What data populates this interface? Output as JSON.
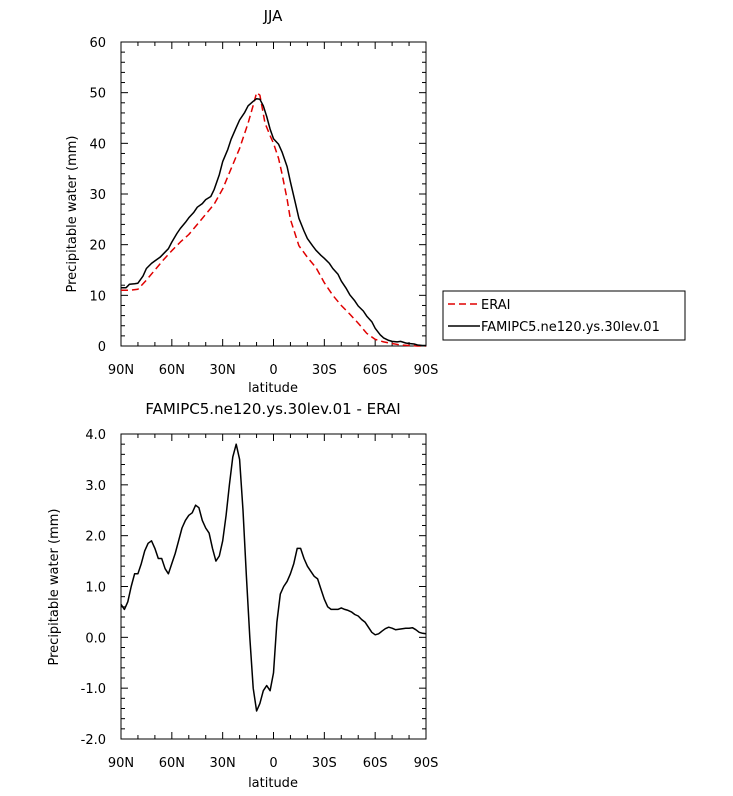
{
  "chart_data": [
    {
      "type": "line",
      "title": "JJA",
      "xlabel": "latitude",
      "ylabel": "Precipitable water (mm)",
      "xlim": [
        90,
        -90
      ],
      "ylim": [
        0,
        60
      ],
      "xticks": [
        90,
        60,
        30,
        0,
        -30,
        -60,
        -90
      ],
      "xtick_labels": [
        "90N",
        "60N",
        "30N",
        "0",
        "30S",
        "60S",
        "90S"
      ],
      "yticks": [
        0,
        10,
        20,
        30,
        40,
        50,
        60
      ],
      "ytick_labels": [
        "0",
        "10",
        "20",
        "30",
        "40",
        "50",
        "60"
      ],
      "legend": {
        "placement": "right-outside"
      },
      "series": [
        {
          "name": "ERAI",
          "color": "#e00000",
          "dash": "dashed",
          "x": [
            90,
            85,
            80,
            75,
            70,
            65,
            60,
            55,
            50,
            45,
            40,
            35,
            30,
            25,
            20,
            15,
            12,
            10,
            8,
            5,
            2,
            0,
            -3,
            -5,
            -8,
            -10,
            -15,
            -20,
            -25,
            -30,
            -35,
            -40,
            -45,
            -50,
            -55,
            -60,
            -65,
            -70,
            -75,
            -80,
            -85,
            -90
          ],
          "y": [
            11,
            11,
            11.2,
            13,
            15,
            17,
            18.8,
            20.5,
            22,
            24,
            26,
            28,
            31,
            35,
            39,
            44,
            47.5,
            50,
            49.5,
            44,
            41.5,
            40,
            37,
            34,
            29,
            25,
            19.8,
            17.5,
            15.5,
            12.5,
            10,
            8,
            6.3,
            4.5,
            2.5,
            1.3,
            0.8,
            0.5,
            0.2,
            0.1,
            0,
            0
          ]
        },
        {
          "name": "FAMIPC5.ne120.ys.30lev.01",
          "color": "#000000",
          "dash": "solid",
          "x": [
            90,
            87,
            85,
            82,
            80,
            77,
            75,
            72,
            70,
            67,
            65,
            62,
            60,
            57,
            55,
            52,
            50,
            47,
            45,
            42,
            40,
            37,
            35,
            32,
            30,
            27,
            25,
            22,
            20,
            17,
            15,
            12,
            10,
            8,
            6,
            4,
            2,
            0,
            -3,
            -5,
            -8,
            -10,
            -13,
            -15,
            -18,
            -20,
            -23,
            -25,
            -28,
            -30,
            -33,
            -35,
            -38,
            -40,
            -43,
            -45,
            -48,
            -50,
            -53,
            -55,
            -58,
            -60,
            -63,
            -65,
            -68,
            -70,
            -73,
            -75,
            -78,
            -80,
            -83,
            -85,
            -88,
            -90
          ],
          "y": [
            11.5,
            11.5,
            12.2,
            12.3,
            12.4,
            13.8,
            15.3,
            16.3,
            16.8,
            17.5,
            18.2,
            19.2,
            20.5,
            22.2,
            23.2,
            24.4,
            25.3,
            26.4,
            27.4,
            28.1,
            28.9,
            29.5,
            30.9,
            33.8,
            36.4,
            38.8,
            40.8,
            43.1,
            44.6,
            46.1,
            47.4,
            48.3,
            48.8,
            48.7,
            47.4,
            45.3,
            42.8,
            40.9,
            39.8,
            38.3,
            35.4,
            32.4,
            28.1,
            25.2,
            22.7,
            21.2,
            19.8,
            18.9,
            17.9,
            17.3,
            16.3,
            15.3,
            14.2,
            12.8,
            11.3,
            10.1,
            8.9,
            7.9,
            6.9,
            5.9,
            4.8,
            3.5,
            2.2,
            1.6,
            1.1,
            0.9,
            0.8,
            0.9,
            0.6,
            0.5,
            0.4,
            0.2,
            0.1,
            0.1
          ]
        }
      ]
    },
    {
      "type": "line",
      "title": "FAMIPC5.ne120.ys.30lev.01 - ERAI",
      "xlabel": "latitude",
      "ylabel": "Precipitable water (mm)",
      "xlim": [
        90,
        -90
      ],
      "ylim": [
        -2.0,
        4.0
      ],
      "xticks": [
        90,
        60,
        30,
        0,
        -30,
        -60,
        -90
      ],
      "xtick_labels": [
        "90N",
        "60N",
        "30N",
        "0",
        "30S",
        "60S",
        "90S"
      ],
      "yticks": [
        -2.0,
        -1.0,
        0.0,
        1.0,
        2.0,
        3.0,
        4.0
      ],
      "ytick_labels": [
        "-2.0",
        "-1.0",
        "0.0",
        "1.0",
        "2.0",
        "3.0",
        "4.0"
      ],
      "series": [
        {
          "color": "#000000",
          "dash": "solid",
          "x": [
            90,
            88,
            86,
            84,
            82,
            80,
            78,
            76,
            74,
            72,
            70,
            68,
            66,
            64,
            62,
            60,
            58,
            56,
            54,
            52,
            50,
            48,
            46,
            44,
            42,
            40,
            38,
            36,
            34,
            32,
            30,
            28,
            26,
            24,
            22,
            20,
            18,
            16,
            14,
            12,
            10,
            8,
            6,
            4,
            2,
            0,
            -2,
            -4,
            -6,
            -8,
            -10,
            -12,
            -14,
            -16,
            -18,
            -20,
            -22,
            -24,
            -26,
            -28,
            -30,
            -32,
            -34,
            -36,
            -38,
            -40,
            -42,
            -44,
            -46,
            -48,
            -50,
            -52,
            -54,
            -56,
            -58,
            -60,
            -62,
            -64,
            -66,
            -68,
            -70,
            -72,
            -74,
            -76,
            -78,
            -80,
            -82,
            -84,
            -86,
            -88,
            -90
          ],
          "y": [
            0.65,
            0.55,
            0.7,
            1.0,
            1.25,
            1.25,
            1.45,
            1.7,
            1.85,
            1.9,
            1.75,
            1.55,
            1.55,
            1.35,
            1.25,
            1.45,
            1.65,
            1.9,
            2.15,
            2.3,
            2.4,
            2.45,
            2.6,
            2.55,
            2.3,
            2.15,
            2.05,
            1.75,
            1.5,
            1.6,
            1.9,
            2.4,
            3.0,
            3.55,
            3.8,
            3.5,
            2.5,
            1.2,
            0.0,
            -1.0,
            -1.45,
            -1.3,
            -1.05,
            -0.95,
            -1.05,
            -0.7,
            0.3,
            0.85,
            1.0,
            1.1,
            1.25,
            1.45,
            1.75,
            1.75,
            1.55,
            1.4,
            1.3,
            1.2,
            1.15,
            0.95,
            0.75,
            0.6,
            0.55,
            0.55,
            0.55,
            0.58,
            0.55,
            0.53,
            0.5,
            0.45,
            0.42,
            0.35,
            0.3,
            0.2,
            0.1,
            0.05,
            0.07,
            0.12,
            0.17,
            0.2,
            0.18,
            0.15,
            0.16,
            0.17,
            0.18,
            0.18,
            0.19,
            0.15,
            0.1,
            0.08,
            0.07
          ]
        }
      ]
    }
  ]
}
